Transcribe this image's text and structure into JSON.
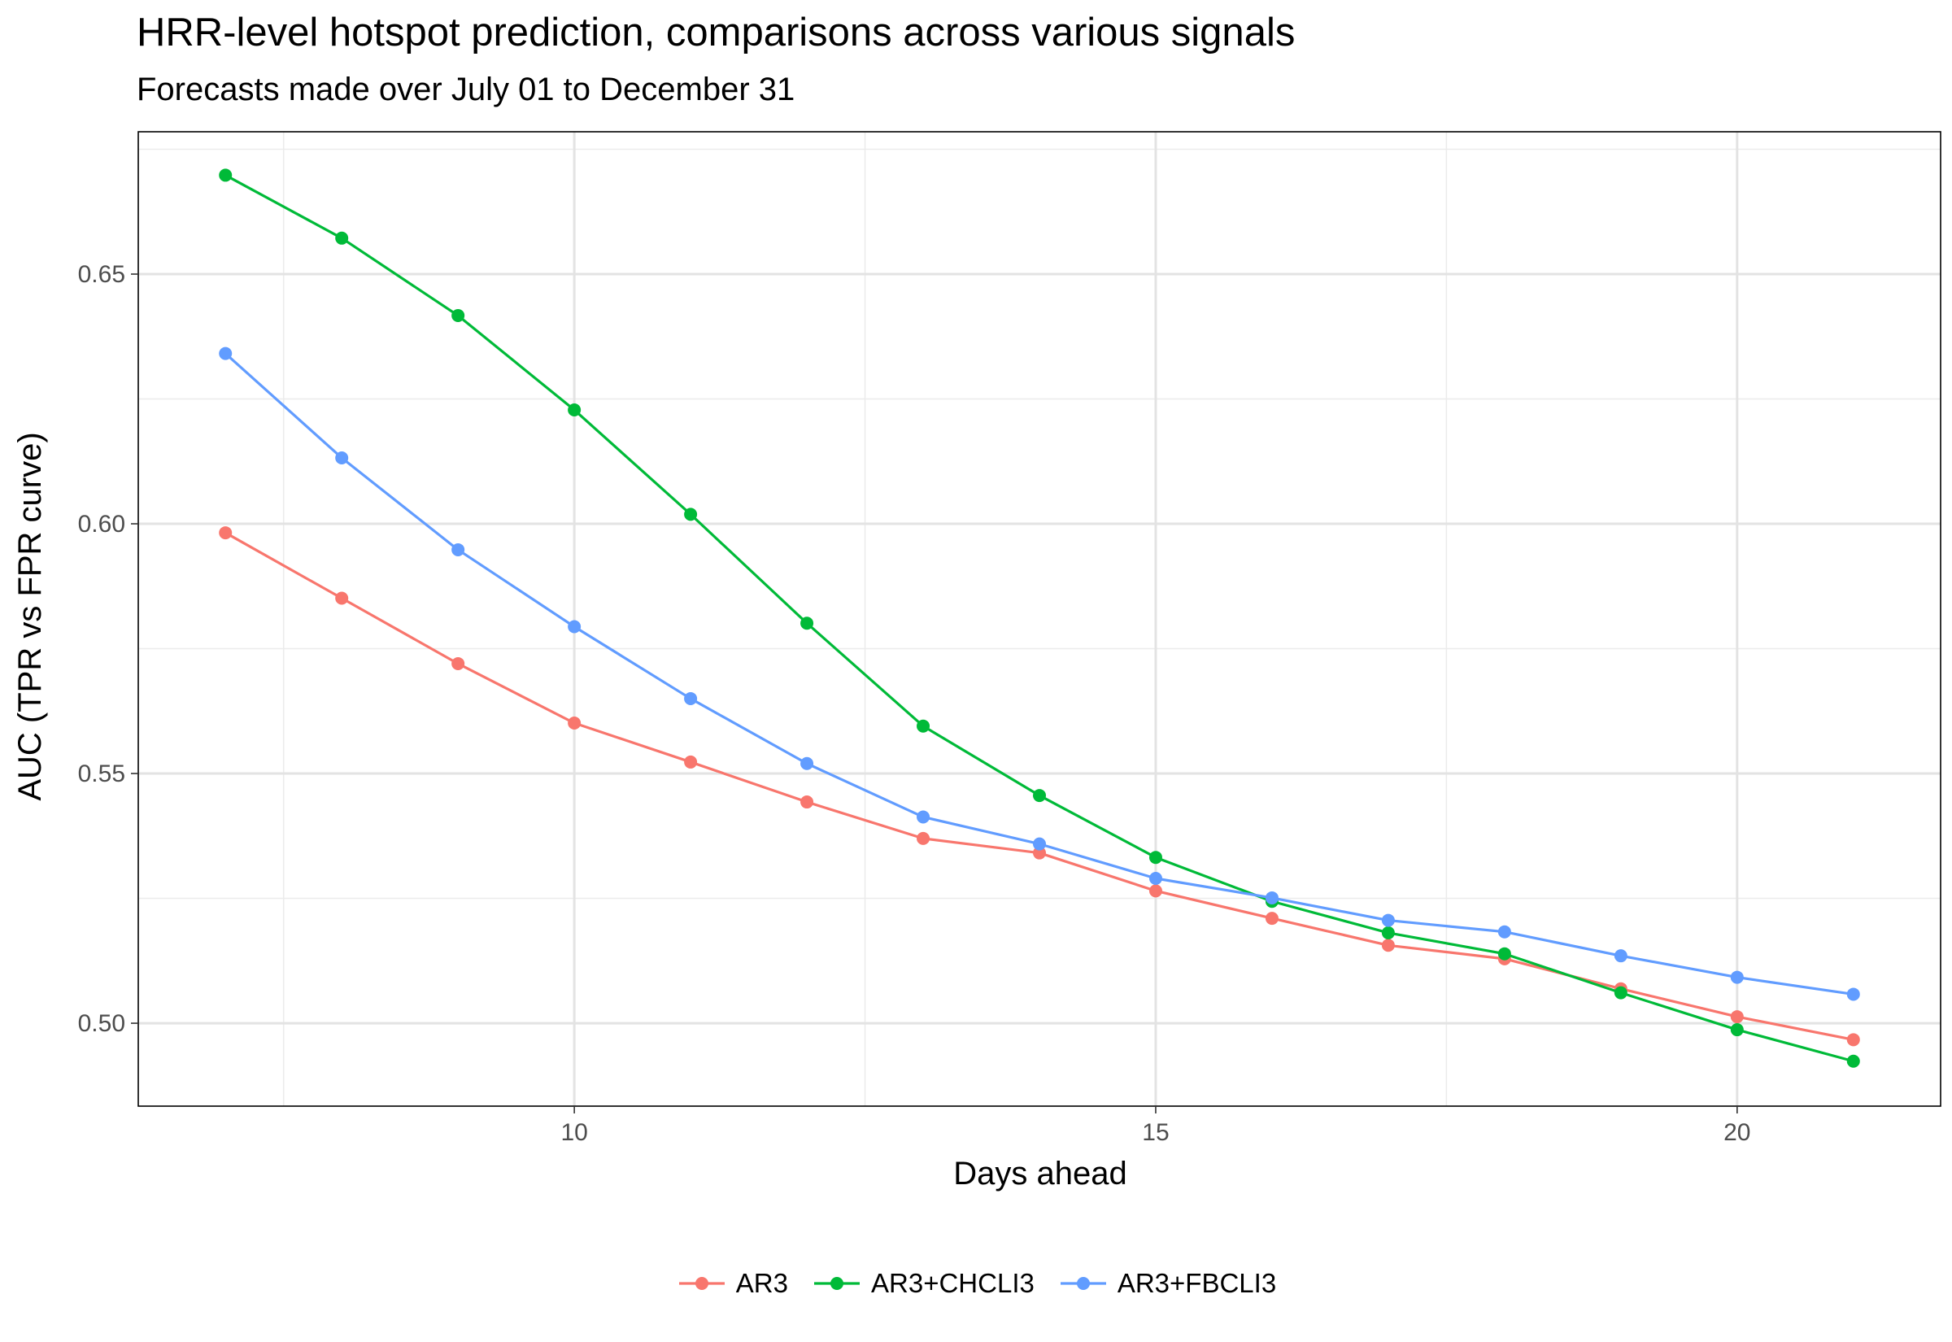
{
  "chart_data": {
    "type": "line",
    "title": "HRR-level hotspot prediction, comparisons across various signals",
    "subtitle": "Forecasts made over July 01 to December 31",
    "xlabel": "Days ahead",
    "ylabel": "AUC (TPR vs FPR curve)",
    "x": [
      7,
      8,
      9,
      10,
      11,
      12,
      13,
      14,
      15,
      16,
      17,
      18,
      19,
      20,
      21
    ],
    "xlim": [
      6.25,
      21.75
    ],
    "ylim": [
      0.4834,
      0.6785
    ],
    "x_ticks": [
      10,
      15,
      20
    ],
    "x_tick_labels": [
      "10",
      "15",
      "20"
    ],
    "y_ticks": [
      0.5,
      0.55,
      0.6,
      0.65
    ],
    "y_tick_labels": [
      "0.50",
      "0.55",
      "0.60",
      "0.65"
    ],
    "grid": true,
    "legend_position": "bottom",
    "series": [
      {
        "name": "AR3",
        "color": "#F8766D",
        "values": [
          0.5982,
          0.5851,
          0.572,
          0.5601,
          0.5523,
          0.5443,
          0.537,
          0.5341,
          0.5265,
          0.521,
          0.5156,
          0.5129,
          0.5069,
          0.5013,
          0.4967
        ]
      },
      {
        "name": "AR3+CHCLI3",
        "color": "#00BA38",
        "values": [
          0.6698,
          0.6572,
          0.6417,
          0.6228,
          0.6019,
          0.5801,
          0.5595,
          0.5456,
          0.5332,
          0.5244,
          0.5181,
          0.5139,
          0.5061,
          0.4987,
          0.4924
        ]
      },
      {
        "name": "AR3+FBCLI3",
        "color": "#619CFF",
        "values": [
          0.6341,
          0.6132,
          0.5948,
          0.5794,
          0.565,
          0.552,
          0.5413,
          0.5359,
          0.529,
          0.5251,
          0.5206,
          0.5183,
          0.5135,
          0.5092,
          0.5058
        ]
      }
    ]
  }
}
